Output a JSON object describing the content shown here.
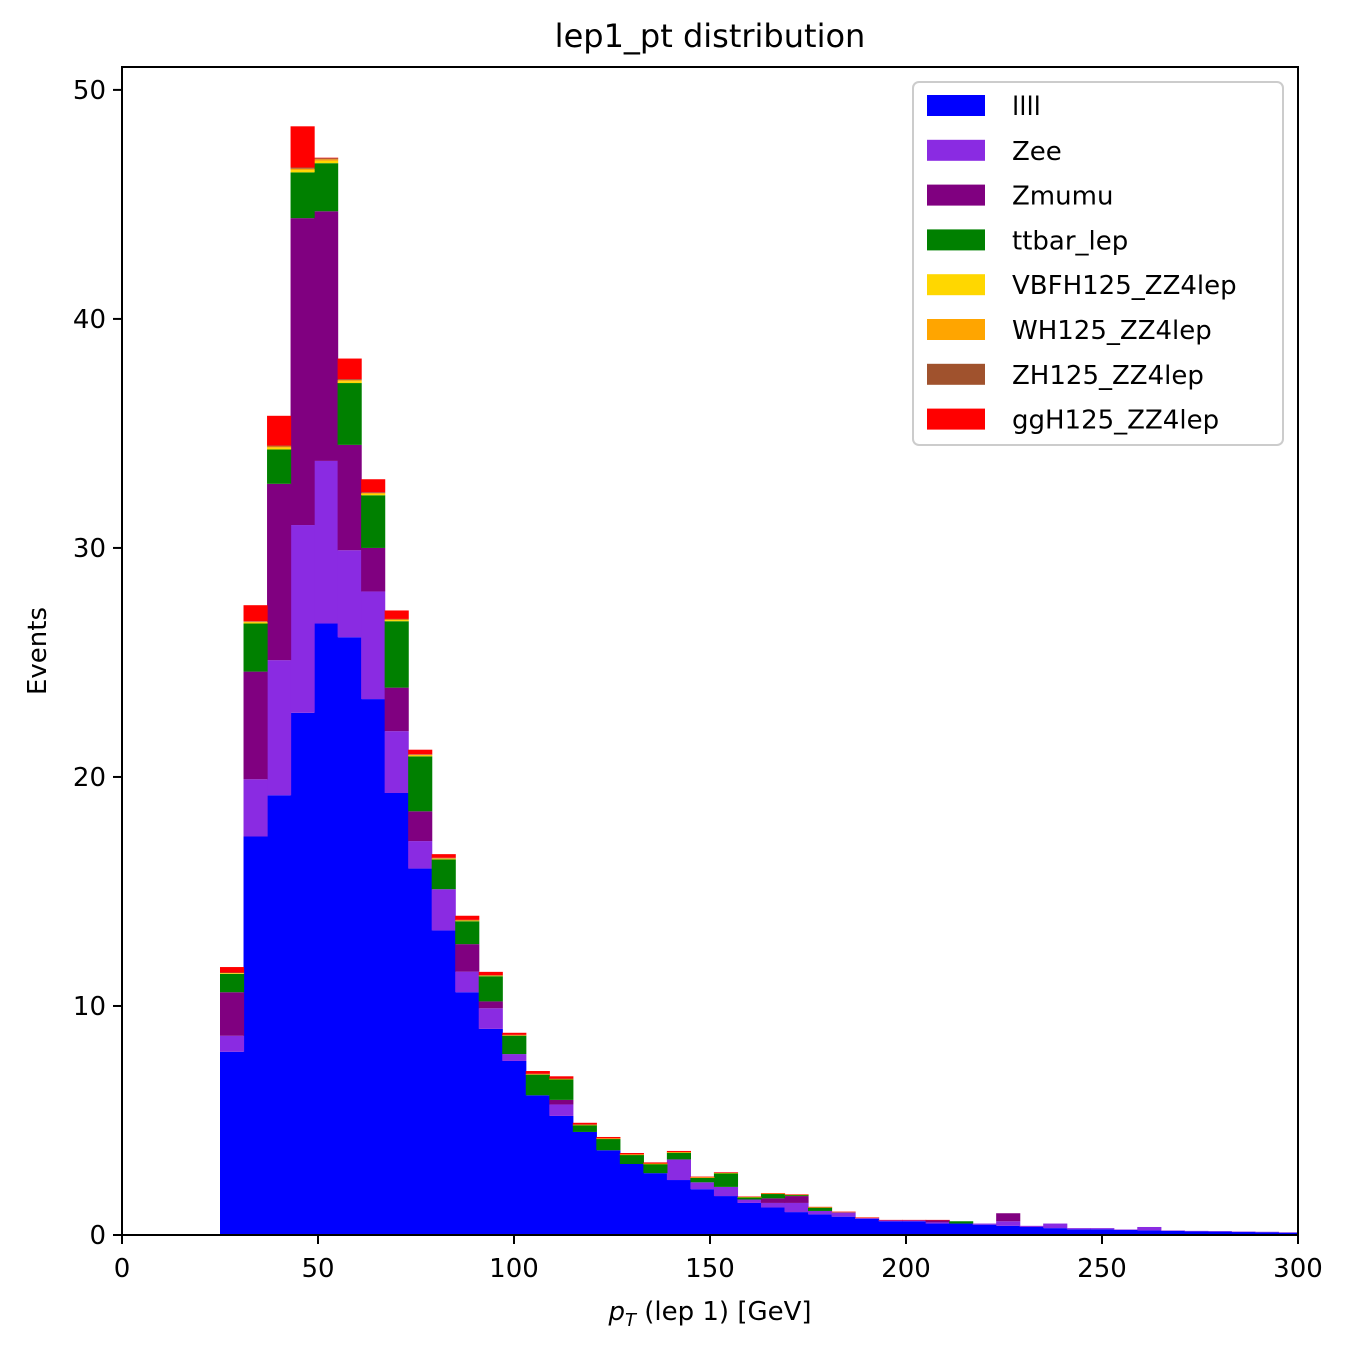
{
  "chart_data": {
    "type": "bar",
    "stacked": true,
    "title": "lep1_pt distribution",
    "xlabel_main": "p",
    "xlabel_sub": "T",
    "xlabel_rest": " (lep 1) [GeV]",
    "ylabel": "Events",
    "xlim": [
      0,
      300
    ],
    "ylim": [
      0,
      51
    ],
    "xticks": [
      0,
      50,
      100,
      150,
      200,
      250,
      300
    ],
    "yticks": [
      0,
      10,
      20,
      30,
      40,
      50
    ],
    "grid": false,
    "legend_position": "top-right",
    "bin_edges": [
      25,
      31,
      37,
      43,
      49,
      55,
      61,
      67,
      73,
      79,
      85,
      91,
      97,
      103,
      109,
      115,
      121,
      127,
      133,
      139,
      145,
      151,
      157,
      163,
      169,
      175,
      181,
      187,
      193,
      199,
      205,
      211,
      217,
      223,
      229,
      235,
      241,
      247,
      253,
      259,
      265,
      271,
      277,
      283,
      289,
      295,
      300
    ],
    "series": [
      {
        "name": "llll",
        "color": "#0000ff",
        "values": [
          8.0,
          17.4,
          19.2,
          22.8,
          26.7,
          26.1,
          23.4,
          19.3,
          16.0,
          13.3,
          10.6,
          9.0,
          7.6,
          6.1,
          5.2,
          4.5,
          3.7,
          3.1,
          2.7,
          2.4,
          2.0,
          1.7,
          1.4,
          1.2,
          1.0,
          0.9,
          0.8,
          0.7,
          0.6,
          0.6,
          0.5,
          0.5,
          0.45,
          0.4,
          0.35,
          0.3,
          0.25,
          0.25,
          0.22,
          0.2,
          0.18,
          0.16,
          0.15,
          0.13,
          0.12,
          0.1
        ]
      },
      {
        "name": "Zee",
        "color": "#8a2be2",
        "values": [
          0.7,
          2.5,
          5.9,
          8.2,
          7.1,
          3.8,
          4.7,
          2.7,
          1.2,
          1.8,
          0.9,
          0.9,
          0.3,
          0.0,
          0.5,
          0.0,
          0.0,
          0.0,
          0.0,
          0.9,
          0.3,
          0.4,
          0.15,
          0.2,
          0.4,
          0.15,
          0.2,
          0.05,
          0.05,
          0.05,
          0.05,
          0.0,
          0.05,
          0.2,
          0.05,
          0.2,
          0.05,
          0.05,
          0.02,
          0.15,
          0.02,
          0.02,
          0.02,
          0.02,
          0.02,
          0.02
        ]
      },
      {
        "name": "Zmumu",
        "color": "#800080",
        "values": [
          1.9,
          4.7,
          7.7,
          13.4,
          10.9,
          4.6,
          1.9,
          1.9,
          1.3,
          0.0,
          1.2,
          0.3,
          0.0,
          0.0,
          0.2,
          0.0,
          0.0,
          0.0,
          0.0,
          0.0,
          0.0,
          0.0,
          0.0,
          0.2,
          0.3,
          0.0,
          0.0,
          0.0,
          0.0,
          0.0,
          0.1,
          0.0,
          0.0,
          0.35,
          0.0,
          0.0,
          0.0,
          0.0,
          0.0,
          0.0,
          0.0,
          0.0,
          0.0,
          0.0,
          0.0,
          0.0
        ]
      },
      {
        "name": "ttbar_lep",
        "color": "#008000",
        "values": [
          0.8,
          2.1,
          1.5,
          2.0,
          2.1,
          2.7,
          2.3,
          2.9,
          2.4,
          1.3,
          1.0,
          1.1,
          0.8,
          0.9,
          0.9,
          0.3,
          0.5,
          0.4,
          0.4,
          0.3,
          0.2,
          0.6,
          0.1,
          0.2,
          0.05,
          0.15,
          0.0,
          0.0,
          0.0,
          0.0,
          0.0,
          0.1,
          0.0,
          0.0,
          0.0,
          0.0,
          0.0,
          0.0,
          0.0,
          0.0,
          0.0,
          0.0,
          0.0,
          0.0,
          0.0,
          0.0
        ]
      },
      {
        "name": "VBFH125_ZZ4lep",
        "color": "#ffd700",
        "values": [
          0.03,
          0.05,
          0.08,
          0.1,
          0.1,
          0.08,
          0.06,
          0.05,
          0.04,
          0.03,
          0.03,
          0.02,
          0.02,
          0.02,
          0.01,
          0.01,
          0.01,
          0.01,
          0.01,
          0.01,
          0.01,
          0.01,
          0.01,
          0.01,
          0.01,
          0.01,
          0.01,
          0.01,
          0.0,
          0.0,
          0.0,
          0.0,
          0.0,
          0.0,
          0.0,
          0.0,
          0.0,
          0.0,
          0.0,
          0.0,
          0.0,
          0.0,
          0.0,
          0.0,
          0.0,
          0.0
        ]
      },
      {
        "name": "WH125_ZZ4lep",
        "color": "#ffa500",
        "values": [
          0.02,
          0.03,
          0.05,
          0.06,
          0.07,
          0.05,
          0.04,
          0.03,
          0.03,
          0.02,
          0.02,
          0.02,
          0.01,
          0.01,
          0.01,
          0.01,
          0.01,
          0.01,
          0.01,
          0.01,
          0.01,
          0.0,
          0.0,
          0.0,
          0.0,
          0.0,
          0.0,
          0.0,
          0.0,
          0.0,
          0.0,
          0.0,
          0.0,
          0.0,
          0.0,
          0.0,
          0.0,
          0.0,
          0.0,
          0.0,
          0.0,
          0.0,
          0.0,
          0.0,
          0.0,
          0.0
        ]
      },
      {
        "name": "ZH125_ZZ4lep",
        "color": "#a0522d",
        "values": [
          0.01,
          0.02,
          0.04,
          0.05,
          0.05,
          0.04,
          0.03,
          0.02,
          0.02,
          0.02,
          0.01,
          0.01,
          0.01,
          0.01,
          0.01,
          0.01,
          0.0,
          0.0,
          0.0,
          0.0,
          0.0,
          0.0,
          0.0,
          0.0,
          0.0,
          0.0,
          0.0,
          0.0,
          0.0,
          0.0,
          0.0,
          0.0,
          0.0,
          0.0,
          0.0,
          0.0,
          0.0,
          0.0,
          0.0,
          0.0,
          0.0,
          0.0,
          0.0,
          0.0,
          0.0,
          0.0
        ]
      },
      {
        "name": "ggH125_ZZ4lep",
        "color": "#ff0000",
        "values": [
          0.24,
          0.7,
          1.3,
          1.8,
          0.02,
          0.9,
          0.57,
          0.37,
          0.2,
          0.16,
          0.18,
          0.14,
          0.09,
          0.12,
          0.1,
          0.07,
          0.06,
          0.06,
          0.05,
          0.05,
          0.03,
          0.03,
          0.02,
          0.02,
          0.02,
          0.02,
          0.01,
          0.01,
          0.01,
          0.01,
          0.01,
          0.0,
          0.0,
          0.0,
          0.0,
          0.0,
          0.0,
          0.0,
          0.0,
          0.0,
          0.0,
          0.0,
          0.0,
          0.0,
          0.0,
          0.0
        ]
      }
    ]
  }
}
